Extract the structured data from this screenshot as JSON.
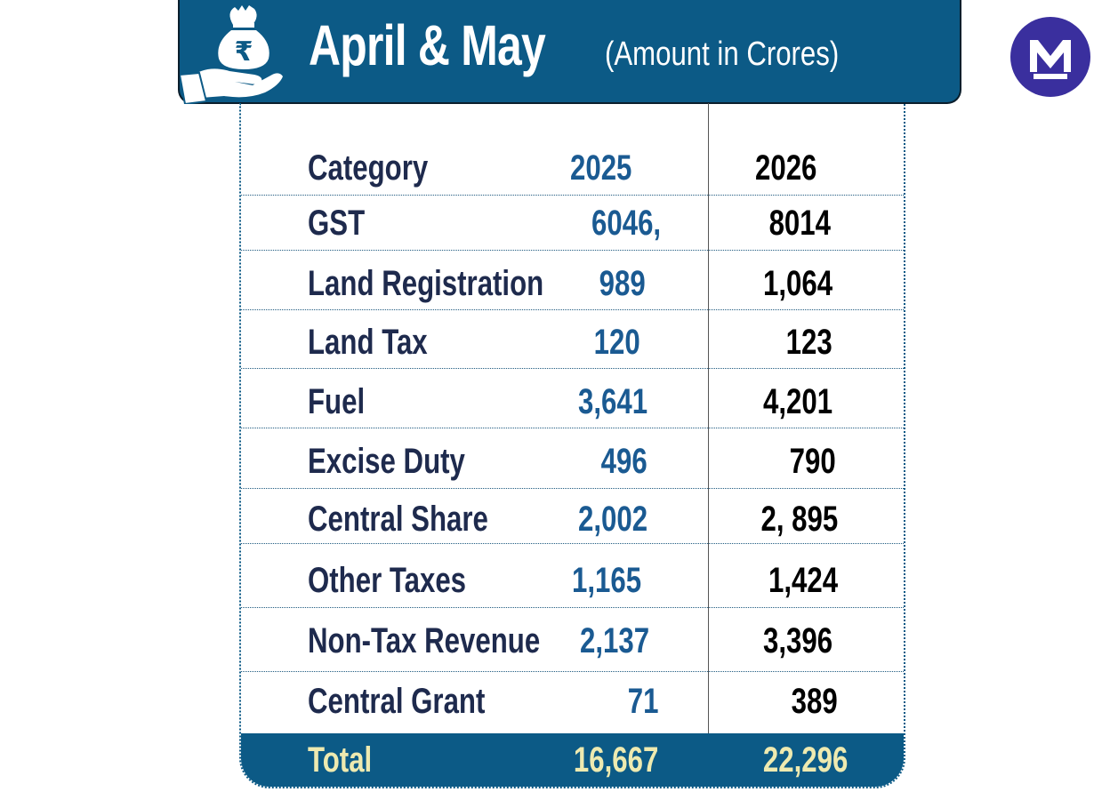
{
  "colors": {
    "accent": "#0c5a86",
    "accent_2": "#1a5a92",
    "text_dark": "#1e2a4d",
    "total_text": "#eeeab0"
  },
  "banner": {
    "icon": "rupee-money-bag-hand-icon",
    "title": "April & May",
    "subtitle": "(Amount in Crores)"
  },
  "logo": {
    "icon": "m-logo-icon"
  },
  "table": {
    "headers": {
      "category": "Category",
      "year1": "2025",
      "year2": "2026"
    },
    "rows": [
      {
        "category": "GST",
        "year1": "6046,",
        "year2": "8014"
      },
      {
        "category": "Land Registration",
        "year1": "989",
        "year2": "1,064"
      },
      {
        "category": "Land Tax",
        "year1": "120",
        "year2": "123"
      },
      {
        "category": "Fuel",
        "year1": "3,641",
        "year2": "4,201"
      },
      {
        "category": "Excise Duty",
        "year1": "496",
        "year2": "790"
      },
      {
        "category": "Central Share",
        "year1": "2,002",
        "year2": "2, 895"
      },
      {
        "category": "Other Taxes",
        "year1": "1,165",
        "year2": "1,424"
      },
      {
        "category": "Non-Tax Revenue",
        "year1": "2,137",
        "year2": "3,396"
      },
      {
        "category": "Central Grant",
        "year1": "71",
        "year2": "389"
      }
    ],
    "total": {
      "label": "Total",
      "year1": "16,667",
      "year2": "22,296"
    }
  }
}
